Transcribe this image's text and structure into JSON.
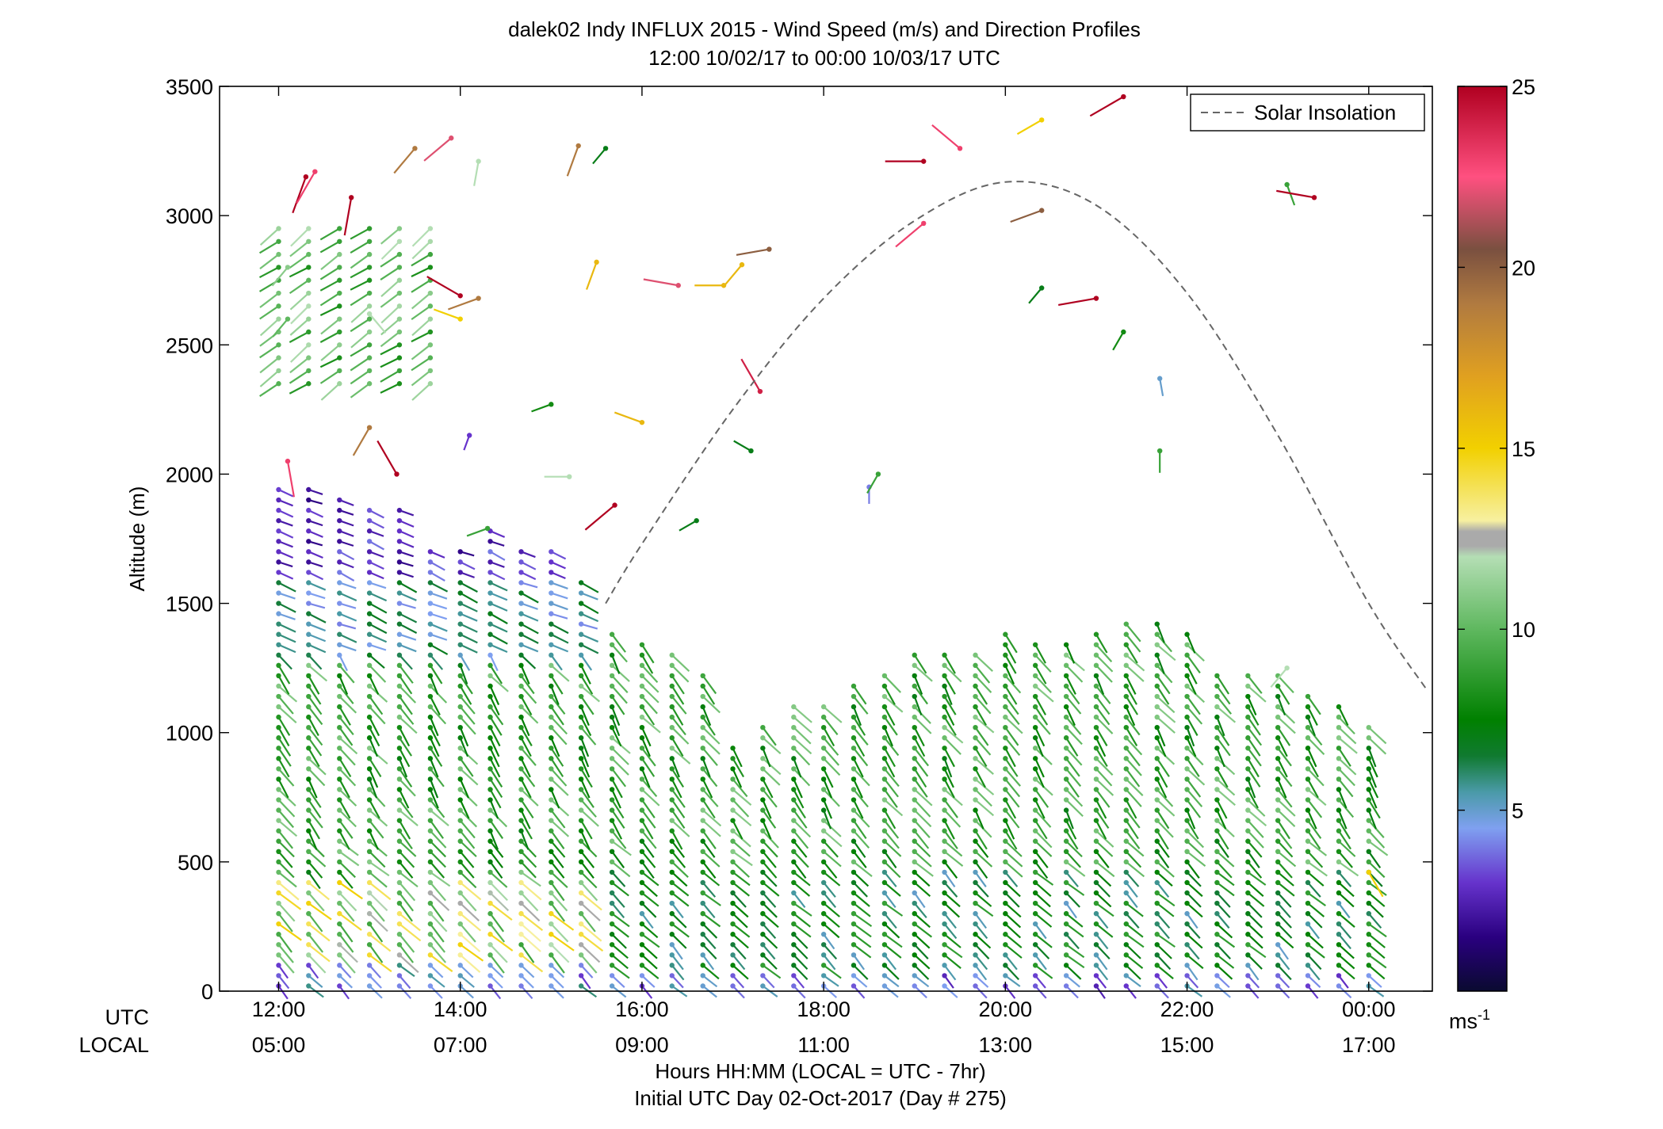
{
  "chart_data": {
    "type": "scatter",
    "title": "dalek02 Indy INFLUX 2015 - Wind Speed (m/s) and Direction Profiles",
    "subtitle": "12:00 10/02/17 to 00:00 10/03/17  UTC",
    "ylabel": "Altitude (m)",
    "xlabel": "Hours HH:MM  (LOCAL = UTC - 7hr)",
    "xlabel2": "Initial UTC Day 02-Oct-2017 (Day # 275)",
    "x_row_labels": [
      "UTC",
      "LOCAL"
    ],
    "xlim_hours": [
      11.35,
      24.7
    ],
    "ylim": [
      0,
      3500
    ],
    "y_ticks": [
      0,
      500,
      1000,
      1500,
      2000,
      2500,
      3000,
      3500
    ],
    "x_ticks": [
      {
        "hour": 12,
        "utc": "12:00",
        "local": "05:00"
      },
      {
        "hour": 14,
        "utc": "14:00",
        "local": "07:00"
      },
      {
        "hour": 16,
        "utc": "16:00",
        "local": "09:00"
      },
      {
        "hour": 18,
        "utc": "18:00",
        "local": "11:00"
      },
      {
        "hour": 20,
        "utc": "20:00",
        "local": "13:00"
      },
      {
        "hour": 22,
        "utc": "22:00",
        "local": "15:00"
      },
      {
        "hour": 24,
        "utc": "00:00",
        "local": "17:00"
      }
    ],
    "legend": {
      "label": "Solar Insolation",
      "placement": "top-right",
      "style": "dashed"
    },
    "solar_insolation_curve": [
      [
        15.6,
        1500
      ],
      [
        16.0,
        1730
      ],
      [
        17.0,
        2250
      ],
      [
        18.0,
        2680
      ],
      [
        19.0,
        2980
      ],
      [
        20.0,
        3130
      ],
      [
        21.0,
        3040
      ],
      [
        22.0,
        2700
      ],
      [
        23.0,
        2150
      ],
      [
        24.0,
        1500
      ],
      [
        24.65,
        1160
      ]
    ],
    "colorbar": {
      "label": "ms",
      "label_superscript": "-1",
      "range": [
        0,
        25
      ],
      "ticks": [
        5,
        10,
        15,
        20,
        25
      ],
      "stops": [
        {
          "v": 0,
          "c": "#0a0a30"
        },
        {
          "v": 1.5,
          "c": "#2a0080"
        },
        {
          "v": 3,
          "c": "#6633cc"
        },
        {
          "v": 4.5,
          "c": "#7fa0f0"
        },
        {
          "v": 5.5,
          "c": "#4a9aa8"
        },
        {
          "v": 6.5,
          "c": "#107a30"
        },
        {
          "v": 7.5,
          "c": "#008000"
        },
        {
          "v": 10,
          "c": "#5fb85f"
        },
        {
          "v": 12,
          "c": "#b4deb4"
        },
        {
          "v": 12.3,
          "c": "#aaaaaa"
        },
        {
          "v": 12.7,
          "c": "#aaaaaa"
        },
        {
          "v": 13,
          "c": "#f7f0a0"
        },
        {
          "v": 15,
          "c": "#f2d000"
        },
        {
          "v": 17,
          "c": "#e0a020"
        },
        {
          "v": 19,
          "c": "#b07a40"
        },
        {
          "v": 20.5,
          "c": "#7a5040"
        },
        {
          "v": 22.5,
          "c": "#ff5080"
        },
        {
          "v": 25,
          "c": "#b00020"
        }
      ]
    },
    "profile_times_utc": [
      12.0,
      12.33,
      12.67,
      13.0,
      13.33,
      13.67,
      14.0,
      14.33,
      14.67,
      15.0,
      15.33,
      15.67,
      16.0,
      16.33,
      16.67,
      17.0,
      17.33,
      17.67,
      18.0,
      18.33,
      18.67,
      19.0,
      19.33,
      19.67,
      20.0,
      20.33,
      20.67,
      21.0,
      21.33,
      21.67,
      22.0,
      22.33,
      22.67,
      23.0,
      23.33,
      23.67,
      24.0
    ],
    "profile_tops_m": [
      1950,
      1950,
      1900,
      1870,
      1880,
      1720,
      1700,
      1780,
      1700,
      1700,
      1600,
      1400,
      1350,
      1300,
      1250,
      950,
      1050,
      1100,
      1100,
      1200,
      1250,
      1300,
      1330,
      1300,
      1380,
      1370,
      1350,
      1380,
      1440,
      1430,
      1380,
      1250,
      1250,
      1220,
      1160,
      1130,
      1050
    ],
    "upper_levels_note": "Sparse wind barbs above the main profiles; values estimated.",
    "upper_barbs": [
      {
        "t": 12.1,
        "z": 2600,
        "s": 10,
        "dir": 230
      },
      {
        "t": 12.1,
        "z": 2800,
        "s": 11,
        "dir": 230
      },
      {
        "t": 12.3,
        "z": 3150,
        "s": 25,
        "dir": 250
      },
      {
        "t": 12.4,
        "z": 3170,
        "s": 23,
        "dir": 240
      },
      {
        "t": 12.8,
        "z": 3070,
        "s": 25,
        "dir": 260
      },
      {
        "t": 13.5,
        "z": 3260,
        "s": 19,
        "dir": 230
      },
      {
        "t": 13.9,
        "z": 3300,
        "s": 22,
        "dir": 220
      },
      {
        "t": 14.2,
        "z": 3210,
        "s": 12,
        "dir": 260
      },
      {
        "t": 15.3,
        "z": 3270,
        "s": 19,
        "dir": 250
      },
      {
        "t": 15.6,
        "z": 3260,
        "s": 7,
        "dir": 230
      },
      {
        "t": 15.5,
        "z": 2820,
        "s": 16,
        "dir": 250
      },
      {
        "t": 16.0,
        "z": 2200,
        "s": 16,
        "dir": 160
      },
      {
        "t": 16.4,
        "z": 2730,
        "s": 22,
        "dir": 170
      },
      {
        "t": 16.9,
        "z": 2730,
        "s": 16,
        "dir": 180
      },
      {
        "t": 17.1,
        "z": 2810,
        "s": 16,
        "dir": 230
      },
      {
        "t": 17.4,
        "z": 2870,
        "s": 20,
        "dir": 190
      },
      {
        "t": 17.3,
        "z": 2320,
        "s": 24,
        "dir": 120
      },
      {
        "t": 17.2,
        "z": 2090,
        "s": 7,
        "dir": 150
      },
      {
        "t": 18.5,
        "z": 1950,
        "s": 4,
        "dir": 270
      },
      {
        "t": 18.6,
        "z": 2000,
        "s": 9,
        "dir": 240
      },
      {
        "t": 19.1,
        "z": 2970,
        "s": 23,
        "dir": 220
      },
      {
        "t": 19.1,
        "z": 3210,
        "s": 25,
        "dir": 180
      },
      {
        "t": 19.5,
        "z": 3260,
        "s": 23,
        "dir": 140
      },
      {
        "t": 20.4,
        "z": 3370,
        "s": 15,
        "dir": 210
      },
      {
        "t": 20.4,
        "z": 3020,
        "s": 20,
        "dir": 200
      },
      {
        "t": 20.4,
        "z": 2720,
        "s": 7,
        "dir": 230
      },
      {
        "t": 21.0,
        "z": 2680,
        "s": 25,
        "dir": 190
      },
      {
        "t": 21.3,
        "z": 2550,
        "s": 8,
        "dir": 240
      },
      {
        "t": 21.3,
        "z": 3460,
        "s": 25,
        "dir": 210
      },
      {
        "t": 21.7,
        "z": 2370,
        "s": 5,
        "dir": 280
      },
      {
        "t": 21.7,
        "z": 2090,
        "s": 9,
        "dir": 270
      },
      {
        "t": 23.1,
        "z": 3120,
        "s": 9,
        "dir": 290
      },
      {
        "t": 23.4,
        "z": 3070,
        "s": 25,
        "dir": 170
      },
      {
        "t": 23.1,
        "z": 1250,
        "s": 12,
        "dir": 230
      },
      {
        "t": 24.0,
        "z": 460,
        "s": 15,
        "dir": 300
      },
      {
        "t": 15.0,
        "z": 2270,
        "s": 8,
        "dir": 200
      },
      {
        "t": 14.1,
        "z": 2150,
        "s": 3,
        "dir": 250
      },
      {
        "t": 14.3,
        "z": 1790,
        "s": 9,
        "dir": 200
      },
      {
        "t": 13.0,
        "z": 2620,
        "s": 12,
        "dir": 310
      },
      {
        "t": 13.0,
        "z": 2180,
        "s": 19,
        "dir": 240
      },
      {
        "t": 13.3,
        "z": 2000,
        "s": 25,
        "dir": 120
      },
      {
        "t": 14.0,
        "z": 2690,
        "s": 25,
        "dir": 150
      },
      {
        "t": 14.2,
        "z": 2680,
        "s": 19,
        "dir": 200
      },
      {
        "t": 14.0,
        "z": 2600,
        "s": 15,
        "dir": 160
      },
      {
        "t": 12.1,
        "z": 2050,
        "s": 23,
        "dir": 280
      },
      {
        "t": 15.2,
        "z": 1990,
        "s": 12,
        "dir": 180
      },
      {
        "t": 15.7,
        "z": 1880,
        "s": 25,
        "dir": 220
      },
      {
        "t": 16.6,
        "z": 1820,
        "s": 7,
        "dir": 210
      }
    ]
  }
}
